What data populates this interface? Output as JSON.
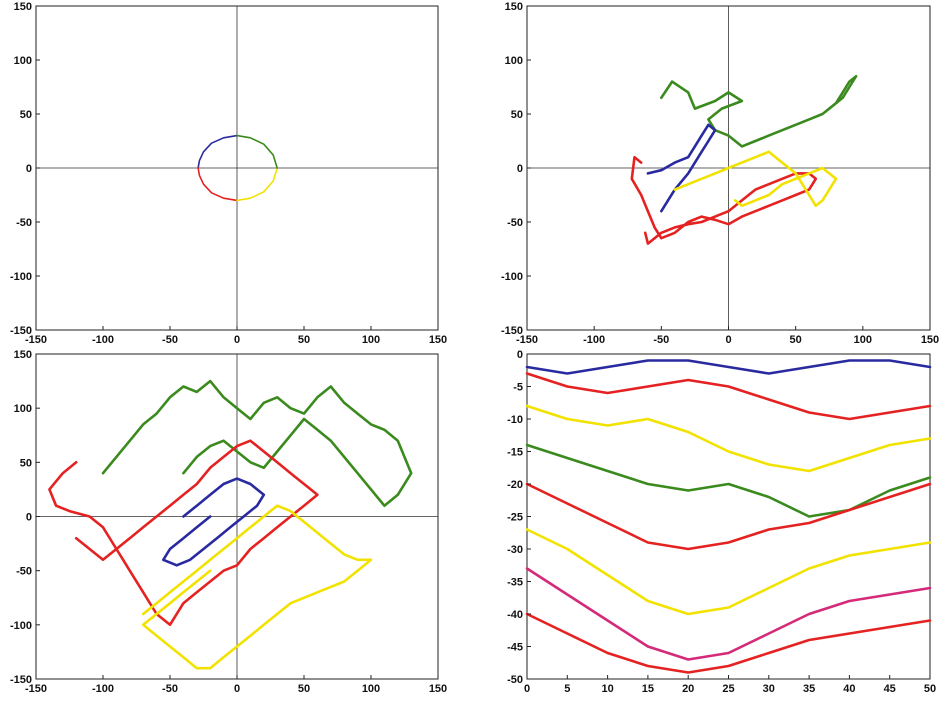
{
  "chart_data": [
    {
      "type": "line",
      "panel": "top-left",
      "title": "",
      "xlabel": "",
      "ylabel": "",
      "xlim": [
        -150,
        150
      ],
      "ylim": [
        -150,
        150
      ],
      "xticks": [
        -150,
        -100,
        -50,
        0,
        50,
        100,
        150
      ],
      "yticks": [
        -150,
        -100,
        -50,
        0,
        50,
        100,
        150
      ],
      "axes_through_origin": true,
      "grid": false,
      "series": [
        {
          "color": "#2a2aa0",
          "x": [
            0,
            -10,
            -19,
            -25,
            -28,
            -29
          ],
          "y": [
            30,
            28,
            23,
            15,
            7,
            0
          ]
        },
        {
          "color": "#e52222",
          "x": [
            -29,
            -28,
            -25,
            -19,
            -10,
            0
          ],
          "y": [
            0,
            -7,
            -15,
            -23,
            -28,
            -30
          ]
        },
        {
          "color": "#f2e200",
          "x": [
            0,
            10,
            20,
            27,
            30
          ],
          "y": [
            -30,
            -28,
            -22,
            -12,
            0
          ]
        },
        {
          "color": "#3a8a1e",
          "x": [
            30,
            27,
            20,
            10,
            0
          ],
          "y": [
            0,
            12,
            22,
            28,
            30
          ]
        }
      ]
    },
    {
      "type": "line",
      "panel": "top-right",
      "title": "",
      "xlabel": "",
      "ylabel": "",
      "xlim": [
        -150,
        150
      ],
      "ylim": [
        -150,
        150
      ],
      "xticks": [
        -150,
        -100,
        -50,
        0,
        50,
        100,
        150
      ],
      "yticks": [
        -150,
        -100,
        -50,
        0,
        50,
        100,
        150
      ],
      "axes_through_origin": true,
      "grid": false,
      "series": [
        {
          "color": "#3a8a1e",
          "x": [
            -50,
            -42,
            -30,
            -25,
            -10,
            0,
            10,
            -5,
            -15,
            -10,
            0,
            5,
            10,
            20,
            30,
            40,
            50,
            60,
            70,
            80,
            85,
            90,
            95,
            90,
            85,
            80,
            75,
            70,
            60,
            50,
            40,
            30,
            20,
            10
          ],
          "y": [
            65,
            80,
            70,
            55,
            62,
            70,
            62,
            55,
            45,
            35,
            30,
            25,
            20,
            25,
            30,
            35,
            40,
            45,
            50,
            60,
            65,
            75,
            85,
            80,
            70,
            60,
            55,
            50,
            45,
            40,
            35,
            30,
            25,
            20
          ]
        },
        {
          "color": "#2a2aa0",
          "x": [
            -60,
            -50,
            -40,
            -30,
            -25,
            -20,
            -15,
            -10,
            -15,
            -20,
            -25,
            -30,
            -40,
            -45,
            -50
          ],
          "y": [
            -5,
            -2,
            5,
            10,
            20,
            30,
            40,
            35,
            25,
            15,
            5,
            -5,
            -20,
            -30,
            -40
          ]
        },
        {
          "color": "#e52222",
          "x": [
            -65,
            -70,
            -72,
            -65,
            -60,
            -55,
            -50,
            -40,
            -30,
            -20,
            -10,
            0,
            10,
            20,
            30,
            40,
            50,
            60,
            65,
            60,
            50,
            40,
            30,
            20,
            10,
            0,
            -10,
            -20,
            -30,
            -40,
            -50,
            -55,
            -60,
            -62
          ],
          "y": [
            5,
            10,
            -10,
            -25,
            -40,
            -55,
            -65,
            -60,
            -50,
            -45,
            -48,
            -52,
            -45,
            -40,
            -35,
            -30,
            -25,
            -20,
            -10,
            -5,
            -5,
            -10,
            -15,
            -20,
            -30,
            -40,
            -45,
            -50,
            -52,
            -55,
            -60,
            -65,
            -70,
            -60
          ]
        },
        {
          "color": "#f2e200",
          "x": [
            -40,
            -30,
            -20,
            -10,
            0,
            10,
            20,
            30,
            40,
            50,
            55,
            60,
            65,
            70,
            75,
            80,
            75,
            70,
            60,
            50,
            40,
            35,
            30,
            20,
            10,
            5
          ],
          "y": [
            -20,
            -15,
            -10,
            -5,
            0,
            5,
            10,
            15,
            5,
            -5,
            -15,
            -25,
            -35,
            -30,
            -20,
            -10,
            -5,
            0,
            -5,
            -10,
            -15,
            -20,
            -25,
            -30,
            -35,
            -30
          ]
        }
      ]
    },
    {
      "type": "line",
      "panel": "bottom-left",
      "title": "",
      "xlabel": "",
      "ylabel": "",
      "xlim": [
        -150,
        150
      ],
      "ylim": [
        -150,
        150
      ],
      "xticks": [
        -150,
        -100,
        -50,
        0,
        50,
        100,
        150
      ],
      "yticks": [
        -150,
        -100,
        -50,
        0,
        50,
        100,
        150
      ],
      "axes_through_origin": true,
      "grid": false,
      "series": [
        {
          "color": "#3a8a1e",
          "x": [
            -100,
            -90,
            -80,
            -70,
            -60,
            -50,
            -40,
            -30,
            -20,
            -10,
            0,
            10,
            20,
            30,
            40,
            50,
            60,
            70,
            80,
            90,
            100,
            110,
            120,
            130,
            120,
            110,
            100,
            90,
            80,
            70,
            60,
            50,
            40,
            30,
            20,
            10,
            0,
            -10,
            -20,
            -30,
            -40
          ],
          "y": [
            40,
            55,
            70,
            85,
            95,
            110,
            120,
            115,
            125,
            110,
            100,
            90,
            105,
            110,
            100,
            95,
            110,
            120,
            105,
            95,
            85,
            80,
            70,
            40,
            20,
            10,
            25,
            40,
            55,
            70,
            80,
            90,
            75,
            60,
            45,
            50,
            60,
            70,
            65,
            55,
            40
          ]
        },
        {
          "color": "#e52222",
          "x": [
            -120,
            -130,
            -140,
            -135,
            -125,
            -110,
            -100,
            -90,
            -80,
            -70,
            -60,
            -50,
            -40,
            -30,
            -20,
            -10,
            0,
            10,
            20,
            30,
            40,
            50,
            60,
            50,
            40,
            30,
            20,
            10,
            0,
            -10,
            -20,
            -30,
            -40,
            -50,
            -60,
            -70,
            -80,
            -90,
            -100,
            -110,
            -120
          ],
          "y": [
            50,
            40,
            25,
            10,
            5,
            0,
            -10,
            -30,
            -50,
            -70,
            -90,
            -100,
            -80,
            -70,
            -60,
            -50,
            -45,
            -30,
            -20,
            -10,
            0,
            10,
            20,
            30,
            40,
            50,
            60,
            70,
            65,
            55,
            45,
            30,
            20,
            10,
            0,
            -10,
            -20,
            -30,
            -40,
            -30,
            -20
          ]
        },
        {
          "color": "#2a2aa0",
          "x": [
            -40,
            -30,
            -20,
            -10,
            0,
            10,
            20,
            15,
            5,
            -5,
            -15,
            -25,
            -35,
            -45,
            -55,
            -50,
            -40,
            -30,
            -20
          ],
          "y": [
            0,
            10,
            20,
            30,
            35,
            30,
            20,
            10,
            0,
            -10,
            -20,
            -30,
            -40,
            -45,
            -40,
            -30,
            -20,
            -10,
            0
          ]
        },
        {
          "color": "#f2e200",
          "x": [
            -70,
            -60,
            -50,
            -40,
            -30,
            -20,
            -10,
            0,
            10,
            20,
            30,
            40,
            50,
            60,
            70,
            80,
            90,
            100,
            90,
            80,
            70,
            60,
            50,
            40,
            30,
            20,
            10,
            0,
            -10,
            -20,
            -30,
            -40,
            -50,
            -60,
            -70,
            -60,
            -50,
            -40,
            -30,
            -20
          ],
          "y": [
            -90,
            -80,
            -70,
            -60,
            -50,
            -40,
            -30,
            -20,
            -10,
            0,
            10,
            5,
            -5,
            -15,
            -25,
            -35,
            -40,
            -40,
            -50,
            -60,
            -65,
            -70,
            -75,
            -80,
            -90,
            -100,
            -110,
            -120,
            -130,
            -140,
            -140,
            -130,
            -120,
            -110,
            -100,
            -90,
            -80,
            -70,
            -60,
            -50
          ]
        }
      ]
    },
    {
      "type": "line",
      "panel": "bottom-right",
      "title": "",
      "xlabel": "",
      "ylabel": "",
      "xlim": [
        0,
        50
      ],
      "ylim": [
        -50,
        0
      ],
      "xticks": [
        0,
        5,
        10,
        15,
        20,
        25,
        30,
        35,
        40,
        45,
        50
      ],
      "yticks": [
        -50,
        -45,
        -40,
        -35,
        -30,
        -25,
        -20,
        -15,
        -10,
        -5,
        0
      ],
      "axes_through_origin": false,
      "grid": false,
      "series": [
        {
          "color": "#e52222",
          "x": [
            0,
            5,
            10,
            15,
            20,
            25,
            30,
            35,
            40,
            45,
            50
          ],
          "y": [
            -3,
            -5,
            -6,
            -5,
            -4,
            -5,
            -7,
            -9,
            -10,
            -9,
            -8
          ]
        },
        {
          "color": "#f2e200",
          "x": [
            0,
            5,
            10,
            15,
            20,
            25,
            30,
            35,
            40,
            45,
            50
          ],
          "y": [
            -8,
            -10,
            -11,
            -10,
            -12,
            -15,
            -17,
            -18,
            -16,
            -14,
            -13
          ]
        },
        {
          "color": "#3a8a1e",
          "x": [
            0,
            5,
            10,
            15,
            20,
            25,
            30,
            35,
            40,
            45,
            50
          ],
          "y": [
            -14,
            -16,
            -18,
            -20,
            -21,
            -20,
            -22,
            -25,
            -24,
            -21,
            -19
          ]
        },
        {
          "color": "#e52222",
          "x": [
            0,
            5,
            10,
            15,
            20,
            25,
            30,
            35,
            40,
            45,
            50
          ],
          "y": [
            -20,
            -23,
            -26,
            -29,
            -30,
            -29,
            -27,
            -26,
            -24,
            -22,
            -20
          ]
        },
        {
          "color": "#f2e200",
          "x": [
            0,
            5,
            10,
            15,
            20,
            25,
            30,
            35,
            40,
            45,
            50
          ],
          "y": [
            -27,
            -30,
            -34,
            -38,
            -40,
            -39,
            -36,
            -33,
            -31,
            -30,
            -29
          ]
        },
        {
          "color": "#d42a7a",
          "x": [
            0,
            5,
            10,
            15,
            20,
            25,
            30,
            35,
            40,
            45,
            50
          ],
          "y": [
            -33,
            -37,
            -41,
            -45,
            -47,
            -46,
            -43,
            -40,
            -38,
            -37,
            -36
          ]
        },
        {
          "color": "#e52222",
          "x": [
            0,
            5,
            10,
            15,
            20,
            25,
            30,
            35,
            40,
            45,
            50
          ],
          "y": [
            -40,
            -43,
            -46,
            -48,
            -49,
            -48,
            -46,
            -44,
            -43,
            -42,
            -41
          ]
        },
        {
          "color": "#2a2aa0",
          "x": [
            0,
            5,
            10,
            15,
            20,
            25,
            30,
            35,
            40,
            45,
            50
          ],
          "y": [
            -2,
            -3,
            -2,
            -1,
            -1,
            -2,
            -3,
            -2,
            -1,
            -1,
            -2
          ]
        }
      ]
    }
  ]
}
